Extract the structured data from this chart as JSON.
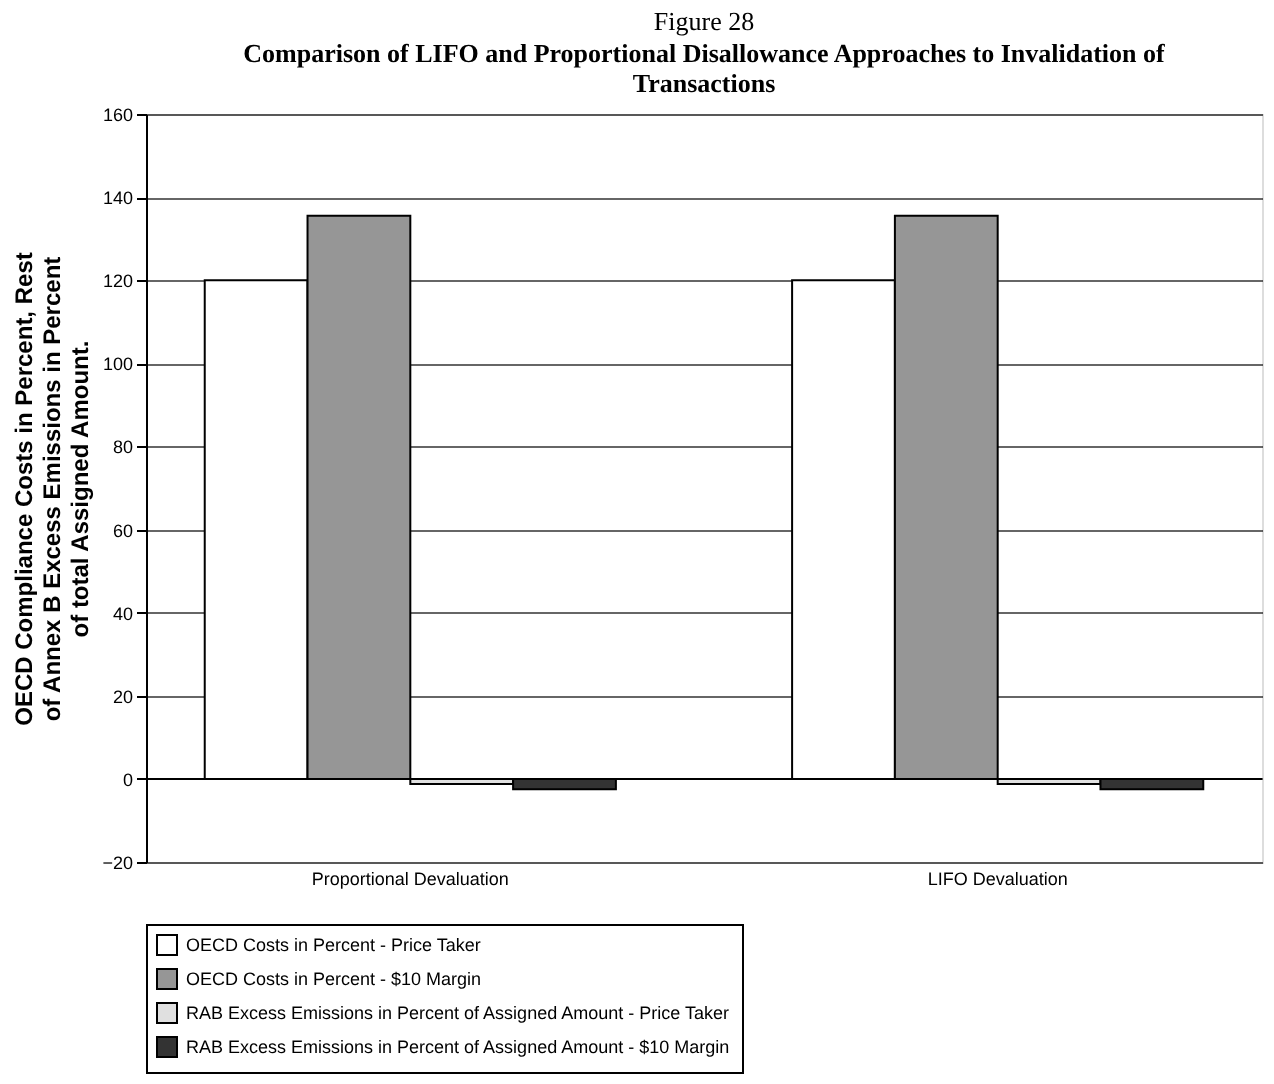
{
  "chart_data": {
    "type": "bar",
    "title": "Figure 28",
    "subtitle": "Comparison of LIFO and Proportional Disallowance Approaches to Invalidation of Transactions",
    "ylabel": "OECD Compliance Costs in Percent, Rest of Annex B Excess Emissions in Percent of total Assigned Amount.",
    "categories": [
      "Proportional Devaluation",
      "LIFO Devaluation"
    ],
    "series": [
      {
        "name": "OECD Costs in Percent - Price Taker",
        "color": "#ffffff",
        "values": [
          120,
          120
        ]
      },
      {
        "name": "OECD Costs in Percent - $10 Margin",
        "color": "#969696",
        "values": [
          135.5,
          135.5
        ]
      },
      {
        "name": "RAB Excess Emissions in Percent of Assigned Amount - Price Taker",
        "color": "#e0e0e0",
        "values": [
          -1.2,
          -1.2
        ]
      },
      {
        "name": "RAB Excess Emissions in Percent of Assigned Amount - $10 Margin",
        "color": "#333333",
        "values": [
          -2.5,
          -2.5
        ]
      }
    ],
    "ylim": [
      -20,
      160
    ],
    "yticks": [
      -20,
      0,
      20,
      40,
      60,
      80,
      100,
      120,
      140,
      160
    ],
    "grid": "y",
    "legend": "bottom"
  }
}
